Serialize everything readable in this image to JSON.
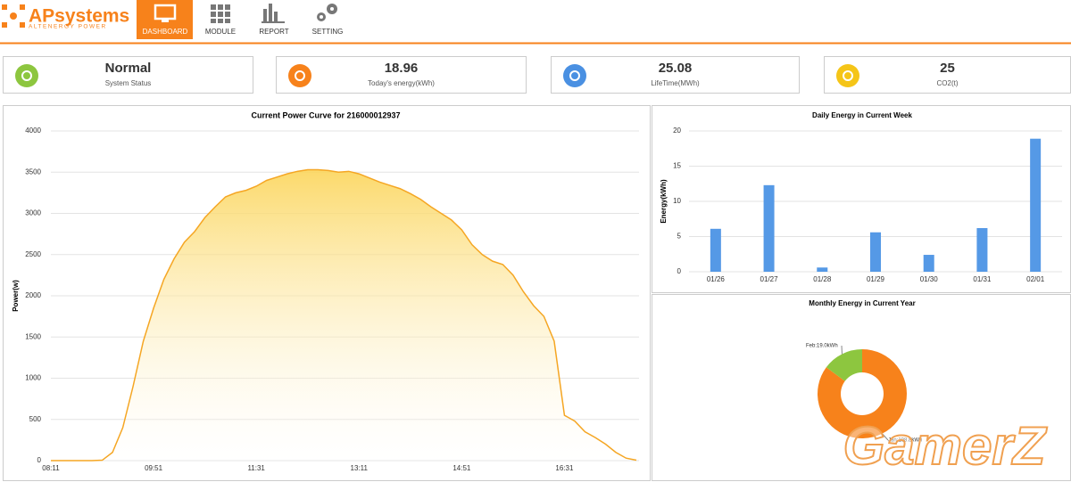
{
  "header": {
    "logo": "APsystems",
    "tagline": "ALTENERGY POWER",
    "nav": [
      "DASHBOARD",
      "MODULE",
      "REPORT",
      "SETTING"
    ]
  },
  "cards": [
    {
      "value": "Normal",
      "label": "System Status"
    },
    {
      "value": "18.96",
      "label": "Today's energy(kWh)"
    },
    {
      "value": "25.08",
      "label": "LifeTime(MWh)"
    },
    {
      "value": "25",
      "label": "CO2(t)"
    }
  ],
  "watermark": "GamerZ",
  "chart_data": [
    {
      "type": "line",
      "title": "Current Power Curve for 216000012937",
      "ylabel": "Power(w)",
      "color": "#f5a623",
      "categories": [
        "08:11",
        "08:21",
        "08:31",
        "08:41",
        "08:51",
        "09:01",
        "09:11",
        "09:21",
        "09:31",
        "09:41",
        "09:51",
        "10:01",
        "10:11",
        "10:21",
        "10:31",
        "10:41",
        "10:51",
        "11:01",
        "11:11",
        "11:21",
        "11:31",
        "11:41",
        "11:51",
        "12:01",
        "12:11",
        "12:21",
        "12:31",
        "12:41",
        "12:51",
        "13:01",
        "13:11",
        "13:21",
        "13:31",
        "13:41",
        "13:51",
        "14:01",
        "14:11",
        "14:21",
        "14:31",
        "14:41",
        "14:51",
        "15:01",
        "15:11",
        "15:21",
        "15:31",
        "15:41",
        "15:51",
        "16:01",
        "16:11",
        "16:21",
        "16:31",
        "16:41",
        "16:51",
        "17:01",
        "17:11",
        "17:21",
        "17:31",
        "17:41"
      ],
      "values": [
        0,
        0,
        0,
        0,
        0,
        5,
        100,
        400,
        900,
        1450,
        1850,
        2200,
        2450,
        2650,
        2780,
        2950,
        3080,
        3200,
        3250,
        3280,
        3330,
        3400,
        3440,
        3480,
        3510,
        3530,
        3530,
        3520,
        3500,
        3510,
        3480,
        3430,
        3380,
        3340,
        3300,
        3240,
        3170,
        3080,
        3000,
        2920,
        2800,
        2620,
        2500,
        2420,
        2380,
        2250,
        2050,
        1880,
        1750,
        1450,
        550,
        480,
        350,
        280,
        200,
        100,
        30,
        5
      ],
      "xticks": [
        "08:11",
        "09:51",
        "11:31",
        "13:11",
        "14:51",
        "16:31"
      ],
      "ylim": [
        0,
        4000
      ],
      "yticks": [
        0,
        500,
        1000,
        1500,
        2000,
        2500,
        3000,
        3500,
        4000
      ],
      "grid": true
    },
    {
      "type": "bar",
      "title": "Daily Energy in Current Week",
      "ylabel": "Energy(kWh)",
      "color": "#5599e6",
      "categories": [
        "01/26",
        "01/27",
        "01/28",
        "01/29",
        "01/30",
        "01/31",
        "02/01"
      ],
      "values": [
        6.1,
        12.3,
        0.6,
        5.6,
        2.4,
        6.2,
        18.9
      ],
      "ylim": [
        0,
        20
      ],
      "yticks": [
        0,
        5,
        10,
        15,
        20
      ],
      "grid": true
    },
    {
      "type": "pie",
      "title": "Monthly Energy in Current Year",
      "categories": [
        "Jan",
        "Feb"
      ],
      "values": [
        108.8,
        19.0
      ],
      "value_labels": [
        "Jan:108.8kWh",
        "Feb:19.0kWh"
      ],
      "colors": [
        "#f7821b",
        "#8dc63f"
      ],
      "donut": true
    }
  ]
}
